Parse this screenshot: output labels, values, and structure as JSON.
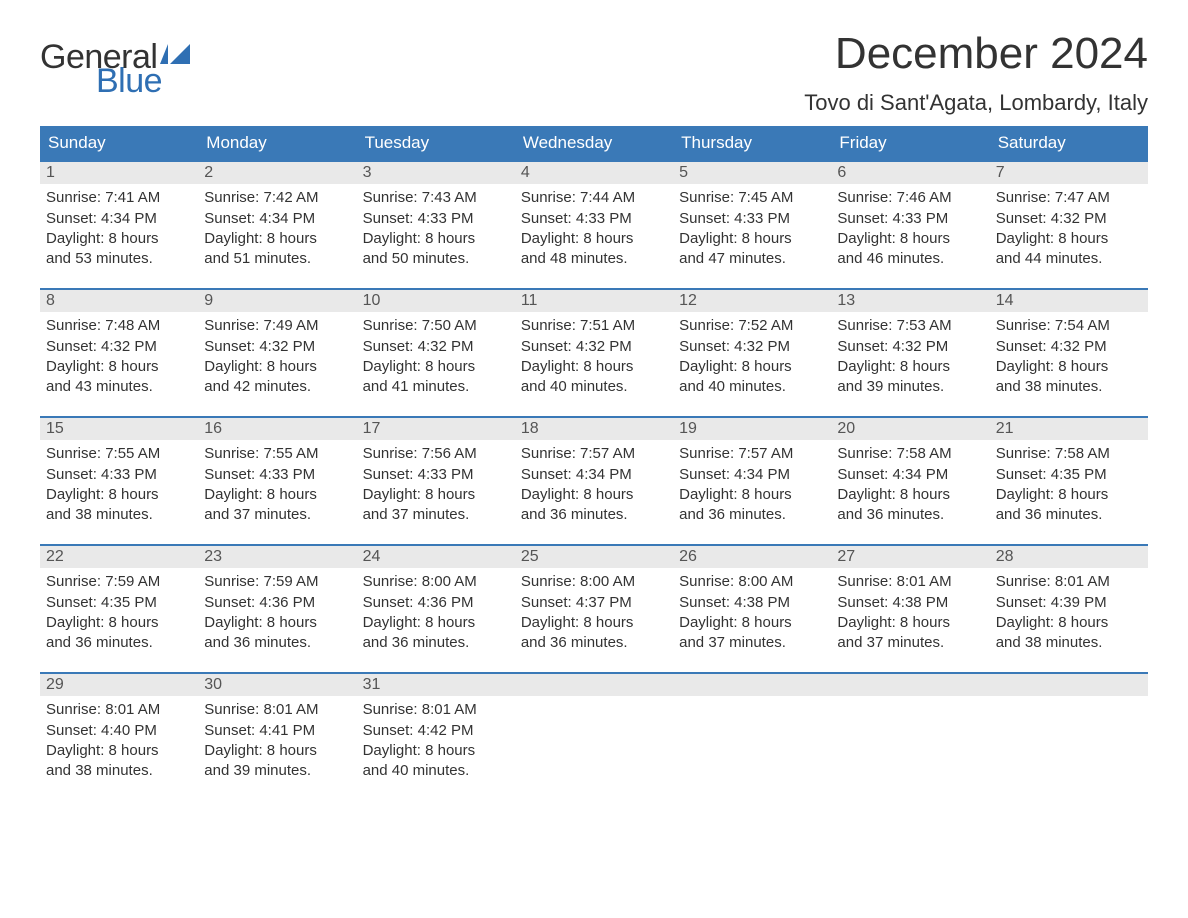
{
  "brand": {
    "word1": "General",
    "word2": "Blue",
    "text_color": "#333333",
    "accent_color": "#2f6fb3"
  },
  "header": {
    "month_title": "December 2024",
    "location": "Tovo di Sant'Agata, Lombardy, Italy",
    "title_fontsize": 44,
    "location_fontsize": 22
  },
  "calendar": {
    "header_bg": "#3a79b7",
    "header_text_color": "#ffffff",
    "daynum_bg": "#e9e9e9",
    "daynum_border_top": "#3a79b7",
    "body_text_color": "#333333",
    "background_color": "#ffffff",
    "day_names": [
      "Sunday",
      "Monday",
      "Tuesday",
      "Wednesday",
      "Thursday",
      "Friday",
      "Saturday"
    ],
    "weeks": [
      [
        {
          "day": "1",
          "sunrise": "Sunrise: 7:41 AM",
          "sunset": "Sunset: 4:34 PM",
          "daylight1": "Daylight: 8 hours",
          "daylight2": "and 53 minutes."
        },
        {
          "day": "2",
          "sunrise": "Sunrise: 7:42 AM",
          "sunset": "Sunset: 4:34 PM",
          "daylight1": "Daylight: 8 hours",
          "daylight2": "and 51 minutes."
        },
        {
          "day": "3",
          "sunrise": "Sunrise: 7:43 AM",
          "sunset": "Sunset: 4:33 PM",
          "daylight1": "Daylight: 8 hours",
          "daylight2": "and 50 minutes."
        },
        {
          "day": "4",
          "sunrise": "Sunrise: 7:44 AM",
          "sunset": "Sunset: 4:33 PM",
          "daylight1": "Daylight: 8 hours",
          "daylight2": "and 48 minutes."
        },
        {
          "day": "5",
          "sunrise": "Sunrise: 7:45 AM",
          "sunset": "Sunset: 4:33 PM",
          "daylight1": "Daylight: 8 hours",
          "daylight2": "and 47 minutes."
        },
        {
          "day": "6",
          "sunrise": "Sunrise: 7:46 AM",
          "sunset": "Sunset: 4:33 PM",
          "daylight1": "Daylight: 8 hours",
          "daylight2": "and 46 minutes."
        },
        {
          "day": "7",
          "sunrise": "Sunrise: 7:47 AM",
          "sunset": "Sunset: 4:32 PM",
          "daylight1": "Daylight: 8 hours",
          "daylight2": "and 44 minutes."
        }
      ],
      [
        {
          "day": "8",
          "sunrise": "Sunrise: 7:48 AM",
          "sunset": "Sunset: 4:32 PM",
          "daylight1": "Daylight: 8 hours",
          "daylight2": "and 43 minutes."
        },
        {
          "day": "9",
          "sunrise": "Sunrise: 7:49 AM",
          "sunset": "Sunset: 4:32 PM",
          "daylight1": "Daylight: 8 hours",
          "daylight2": "and 42 minutes."
        },
        {
          "day": "10",
          "sunrise": "Sunrise: 7:50 AM",
          "sunset": "Sunset: 4:32 PM",
          "daylight1": "Daylight: 8 hours",
          "daylight2": "and 41 minutes."
        },
        {
          "day": "11",
          "sunrise": "Sunrise: 7:51 AM",
          "sunset": "Sunset: 4:32 PM",
          "daylight1": "Daylight: 8 hours",
          "daylight2": "and 40 minutes."
        },
        {
          "day": "12",
          "sunrise": "Sunrise: 7:52 AM",
          "sunset": "Sunset: 4:32 PM",
          "daylight1": "Daylight: 8 hours",
          "daylight2": "and 40 minutes."
        },
        {
          "day": "13",
          "sunrise": "Sunrise: 7:53 AM",
          "sunset": "Sunset: 4:32 PM",
          "daylight1": "Daylight: 8 hours",
          "daylight2": "and 39 minutes."
        },
        {
          "day": "14",
          "sunrise": "Sunrise: 7:54 AM",
          "sunset": "Sunset: 4:32 PM",
          "daylight1": "Daylight: 8 hours",
          "daylight2": "and 38 minutes."
        }
      ],
      [
        {
          "day": "15",
          "sunrise": "Sunrise: 7:55 AM",
          "sunset": "Sunset: 4:33 PM",
          "daylight1": "Daylight: 8 hours",
          "daylight2": "and 38 minutes."
        },
        {
          "day": "16",
          "sunrise": "Sunrise: 7:55 AM",
          "sunset": "Sunset: 4:33 PM",
          "daylight1": "Daylight: 8 hours",
          "daylight2": "and 37 minutes."
        },
        {
          "day": "17",
          "sunrise": "Sunrise: 7:56 AM",
          "sunset": "Sunset: 4:33 PM",
          "daylight1": "Daylight: 8 hours",
          "daylight2": "and 37 minutes."
        },
        {
          "day": "18",
          "sunrise": "Sunrise: 7:57 AM",
          "sunset": "Sunset: 4:34 PM",
          "daylight1": "Daylight: 8 hours",
          "daylight2": "and 36 minutes."
        },
        {
          "day": "19",
          "sunrise": "Sunrise: 7:57 AM",
          "sunset": "Sunset: 4:34 PM",
          "daylight1": "Daylight: 8 hours",
          "daylight2": "and 36 minutes."
        },
        {
          "day": "20",
          "sunrise": "Sunrise: 7:58 AM",
          "sunset": "Sunset: 4:34 PM",
          "daylight1": "Daylight: 8 hours",
          "daylight2": "and 36 minutes."
        },
        {
          "day": "21",
          "sunrise": "Sunrise: 7:58 AM",
          "sunset": "Sunset: 4:35 PM",
          "daylight1": "Daylight: 8 hours",
          "daylight2": "and 36 minutes."
        }
      ],
      [
        {
          "day": "22",
          "sunrise": "Sunrise: 7:59 AM",
          "sunset": "Sunset: 4:35 PM",
          "daylight1": "Daylight: 8 hours",
          "daylight2": "and 36 minutes."
        },
        {
          "day": "23",
          "sunrise": "Sunrise: 7:59 AM",
          "sunset": "Sunset: 4:36 PM",
          "daylight1": "Daylight: 8 hours",
          "daylight2": "and 36 minutes."
        },
        {
          "day": "24",
          "sunrise": "Sunrise: 8:00 AM",
          "sunset": "Sunset: 4:36 PM",
          "daylight1": "Daylight: 8 hours",
          "daylight2": "and 36 minutes."
        },
        {
          "day": "25",
          "sunrise": "Sunrise: 8:00 AM",
          "sunset": "Sunset: 4:37 PM",
          "daylight1": "Daylight: 8 hours",
          "daylight2": "and 36 minutes."
        },
        {
          "day": "26",
          "sunrise": "Sunrise: 8:00 AM",
          "sunset": "Sunset: 4:38 PM",
          "daylight1": "Daylight: 8 hours",
          "daylight2": "and 37 minutes."
        },
        {
          "day": "27",
          "sunrise": "Sunrise: 8:01 AM",
          "sunset": "Sunset: 4:38 PM",
          "daylight1": "Daylight: 8 hours",
          "daylight2": "and 37 minutes."
        },
        {
          "day": "28",
          "sunrise": "Sunrise: 8:01 AM",
          "sunset": "Sunset: 4:39 PM",
          "daylight1": "Daylight: 8 hours",
          "daylight2": "and 38 minutes."
        }
      ],
      [
        {
          "day": "29",
          "sunrise": "Sunrise: 8:01 AM",
          "sunset": "Sunset: 4:40 PM",
          "daylight1": "Daylight: 8 hours",
          "daylight2": "and 38 minutes."
        },
        {
          "day": "30",
          "sunrise": "Sunrise: 8:01 AM",
          "sunset": "Sunset: 4:41 PM",
          "daylight1": "Daylight: 8 hours",
          "daylight2": "and 39 minutes."
        },
        {
          "day": "31",
          "sunrise": "Sunrise: 8:01 AM",
          "sunset": "Sunset: 4:42 PM",
          "daylight1": "Daylight: 8 hours",
          "daylight2": "and 40 minutes."
        },
        {
          "empty": true
        },
        {
          "empty": true
        },
        {
          "empty": true
        },
        {
          "empty": true
        }
      ]
    ]
  }
}
